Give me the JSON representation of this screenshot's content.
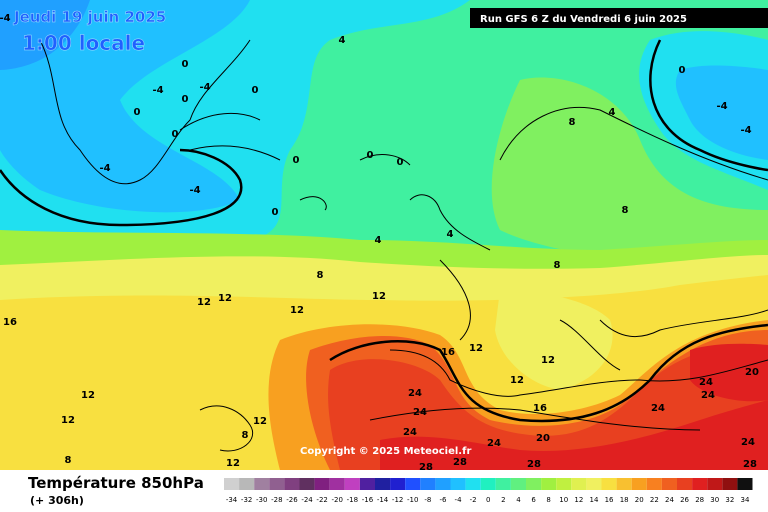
{
  "header": {
    "date": "Jeudi 19 juin 2025",
    "time": "1:00 locale",
    "run": "Run GFS 6 Z du Vendredi 6 juin 2025"
  },
  "copyright": "Copyright © 2025 Meteociel.fr",
  "footer": {
    "title": "Température 850hPa",
    "lead": "(+ 306h)"
  },
  "scale": {
    "values": [
      -34,
      -32,
      -30,
      -28,
      -26,
      -24,
      -22,
      -20,
      -18,
      -16,
      -14,
      -12,
      -10,
      -8,
      -6,
      -4,
      -2,
      0,
      2,
      4,
      6,
      8,
      10,
      12,
      14,
      16,
      18,
      20,
      22,
      24,
      26,
      28,
      30,
      32,
      34
    ],
    "colors": [
      "#d0d0d0",
      "#b8b8b8",
      "#a080a0",
      "#906090",
      "#804080",
      "#603060",
      "#802080",
      "#a030a0",
      "#c040c0",
      "#5020a0",
      "#2020a0",
      "#2020d0",
      "#2050ff",
      "#2080ff",
      "#20a0ff",
      "#20c0ff",
      "#20e0f0",
      "#20f0c0",
      "#40f0a0",
      "#60f080",
      "#80f060",
      "#a0f040",
      "#c0f040",
      "#e0f050",
      "#f0f060",
      "#f8e040",
      "#f8c030",
      "#f8a020",
      "#f88020",
      "#f06020",
      "#e84020",
      "#e02020",
      "#c01818",
      "#901010",
      "#101010"
    ]
  },
  "contours": [
    -4,
    0,
    -4,
    0,
    -4,
    0,
    0,
    0,
    -4,
    -4,
    0,
    0,
    0,
    0,
    4,
    0,
    -4,
    -4,
    4,
    8,
    8,
    8,
    4,
    4,
    8,
    12,
    12,
    12,
    12,
    16,
    16,
    12,
    12,
    12,
    16,
    24,
    24,
    24,
    24,
    20,
    24,
    24,
    24,
    20,
    24,
    28,
    28,
    28,
    28,
    12,
    12,
    12,
    8,
    12,
    8
  ]
}
